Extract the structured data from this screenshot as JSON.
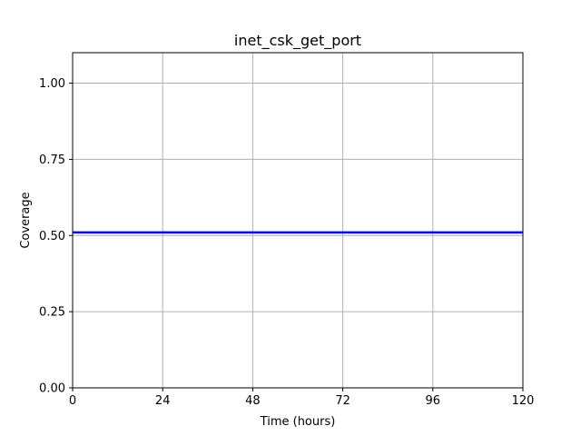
{
  "chart_data": {
    "type": "line",
    "title": "inet_csk_get_port",
    "xlabel": "Time (hours)",
    "ylabel": "Coverage",
    "xlim": [
      0,
      120
    ],
    "ylim": [
      0,
      1.1
    ],
    "xticks": [
      0,
      24,
      48,
      72,
      96,
      120
    ],
    "xtick_labels": [
      "0",
      "24",
      "48",
      "72",
      "96",
      "120"
    ],
    "yticks": [
      0,
      0.25,
      0.5,
      0.75,
      1.0
    ],
    "ytick_labels": [
      "0.00",
      "0.25",
      "0.50",
      "0.75",
      "1.00"
    ],
    "grid": true,
    "series": [
      {
        "color": "#0000ff",
        "x": [
          0,
          120
        ],
        "y": [
          0.51,
          0.51
        ]
      }
    ]
  }
}
